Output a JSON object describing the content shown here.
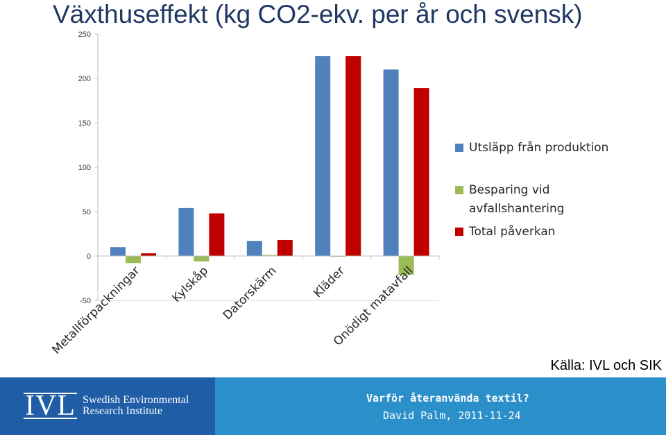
{
  "title": "Växthuseffekt (kg CO2-ekv. per år och svensk)",
  "chart_data": {
    "type": "bar",
    "categories": [
      "Metallförpackningar",
      "Kylskåp",
      "Datorskärm",
      "Kläder",
      "Onödigt matavfall"
    ],
    "series": [
      {
        "name": "Utsläpp från produktion",
        "color": "#4f81bd",
        "values": [
          10,
          54,
          17,
          225,
          210
        ]
      },
      {
        "name": "Besparing vid avfallshantering",
        "color": "#9bbb59",
        "values": [
          -8,
          -6,
          1,
          0,
          -21
        ]
      },
      {
        "name": "Total påverkan",
        "color": "#c00000",
        "values": [
          3,
          48,
          18,
          225,
          189
        ]
      }
    ],
    "yticks": [
      250,
      200,
      150,
      100,
      50,
      0,
      -50
    ],
    "ylim": [
      -50,
      250
    ],
    "grid": false,
    "legend_position": "right"
  },
  "source": "Källa: IVL och SIK",
  "footer": {
    "logo_mark": "IVL",
    "logo_line1": "Swedish Environmental",
    "logo_line2": "Research Institute",
    "title": "Varför återanvända textil?",
    "subtitle": "David Palm, 2011-11-24"
  }
}
